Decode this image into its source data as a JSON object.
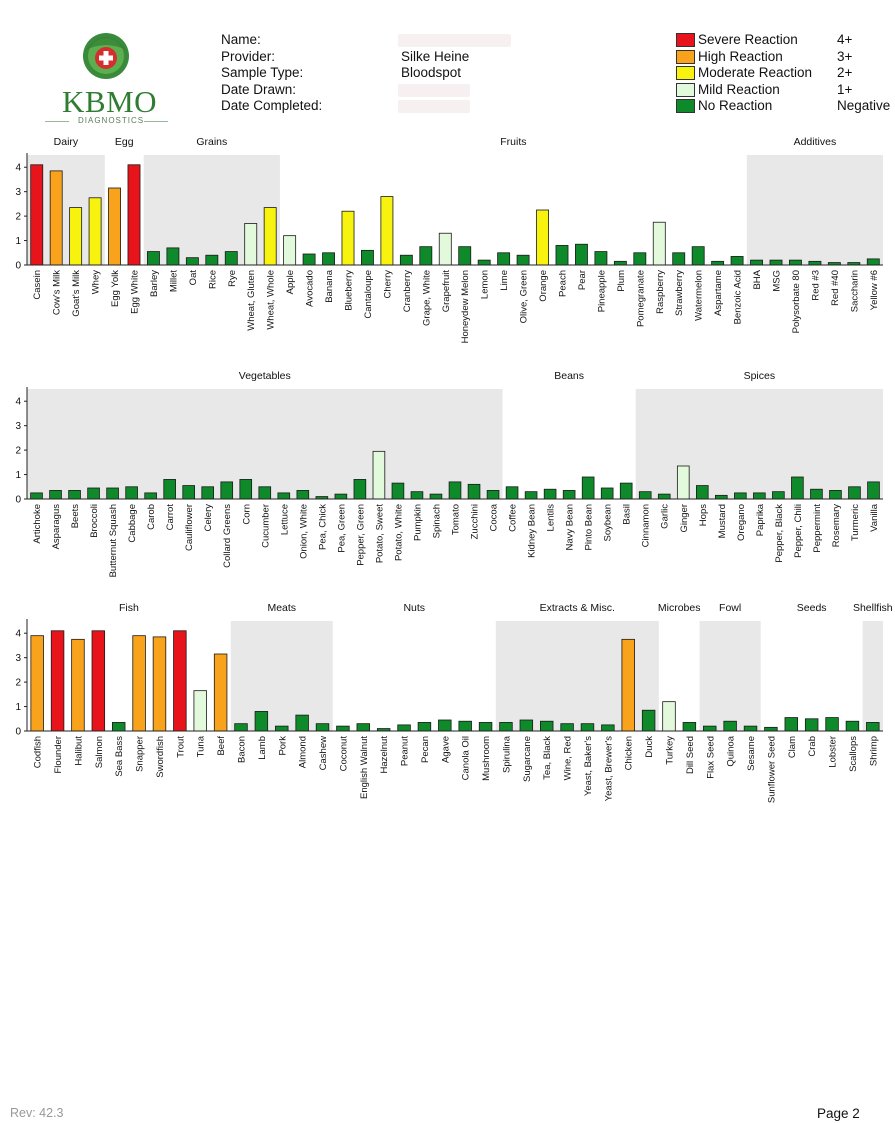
{
  "brand": {
    "logo_text": "KBMO",
    "logo_sub": "DIAGNOSTICS",
    "green": "#2f7d32",
    "red": "#e53935"
  },
  "patient": {
    "name_label": "Name:",
    "name_value": "",
    "provider_label": "Provider:",
    "provider_value": "Silke Heine",
    "sample_label": "Sample Type:",
    "sample_value": "Bloodspot",
    "drawn_label": "Date Drawn:",
    "drawn_value": "",
    "completed_label": "Date Completed:",
    "completed_value": ""
  },
  "legend": [
    {
      "label": "Severe Reaction",
      "grade": "4+",
      "color": "#e8141b"
    },
    {
      "label": "High Reaction",
      "grade": "3+",
      "color": "#f9a21b"
    },
    {
      "label": "Moderate Reaction",
      "grade": "2+",
      "color": "#f8f20f"
    },
    {
      "label": "Mild Reaction",
      "grade": "1+",
      "color": "#e2f9dc"
    },
    {
      "label": "No Reaction",
      "grade": "Negative",
      "color": "#0e8a2a"
    }
  ],
  "chart_data": [
    {
      "type": "bar",
      "ylim": [
        0,
        4.5
      ],
      "yticks": [
        "0",
        "1",
        "2",
        "3",
        "4"
      ],
      "groups": [
        {
          "name": "Dairy",
          "shaded": true,
          "start": 0,
          "end": 3
        },
        {
          "name": "Egg",
          "shaded": false,
          "start": 4,
          "end": 5
        },
        {
          "name": "Grains",
          "shaded": true,
          "start": 6,
          "end": 12
        },
        {
          "name": "Fruits",
          "shaded": false,
          "start": 13,
          "end": 36
        },
        {
          "name": "Additives",
          "shaded": true,
          "start": 37,
          "end": 46
        }
      ],
      "categories": [
        "Casein",
        "Cow's Milk",
        "Goat's Milk",
        "Whey",
        "Egg Yolk",
        "Egg White",
        "Barley",
        "Millet",
        "Oat",
        "Rice",
        "Rye",
        "Wheat, Gluten",
        "Wheat, Whole",
        "Apple",
        "Avocado",
        "Banana",
        "Blueberry",
        "Cantaloupe",
        "Cherry",
        "Cranberry",
        "Grape, White",
        "Grapefruit",
        "Honeydew Melon",
        "Lemon",
        "Lime",
        "Olive, Green",
        "Orange",
        "Peach",
        "Pear",
        "Pineapple",
        "Plum",
        "Pomegranate",
        "Raspberry",
        "Strawberry",
        "Watermelon",
        "Aspartame",
        "Benzoic Acid",
        "BHA",
        "MSG",
        "Polysorbate 80",
        "Red #3",
        "Red #40",
        "Saccharin",
        "Yellow #6"
      ],
      "values": [
        4.1,
        3.85,
        2.35,
        2.75,
        3.15,
        4.1,
        0.55,
        0.7,
        0.3,
        0.4,
        0.55,
        1.7,
        2.35,
        1.2,
        0.45,
        0.5,
        2.2,
        0.6,
        2.8,
        0.4,
        0.75,
        1.3,
        0.75,
        0.2,
        0.5,
        0.4,
        2.25,
        0.8,
        0.85,
        0.55,
        0.15,
        0.5,
        1.75,
        0.5,
        0.75,
        0.15,
        0.35,
        0.2,
        0.2,
        0.2,
        0.15,
        0.1,
        0.1,
        0.25
      ]
    },
    {
      "type": "bar",
      "ylim": [
        0,
        4.5
      ],
      "yticks": [
        "0",
        "1",
        "2",
        "3",
        "4"
      ],
      "groups": [
        {
          "name": "Vegetables",
          "shaded": true,
          "start": 0,
          "end": 24
        },
        {
          "name": "Beans",
          "shaded": false,
          "start": 25,
          "end": 31
        },
        {
          "name": "Spices",
          "shaded": true,
          "start": 32,
          "end": 46
        }
      ],
      "categories": [
        "Artichoke",
        "Asparagus",
        "Beets",
        "Broccoli",
        "Butternut Squash",
        "Cabbage",
        "Carob",
        "Carrot",
        "Cauliflower",
        "Celery",
        "Collard Greens",
        "Corn",
        "Cucumber",
        "Lettuce",
        "Onion, White",
        "Pea, Chick",
        "Pea, Green",
        "Pepper, Green",
        "Potato, Sweet",
        "Potato, White",
        "Pumpkin",
        "Spinach",
        "Tomato",
        "Zucchini",
        "Cocoa",
        "Coffee",
        "Kidney Bean",
        "Lentils",
        "Navy Bean",
        "Pinto Bean",
        "Soybean",
        "Basil",
        "Cinnamon",
        "Garlic",
        "Ginger",
        "Hops",
        "Mustard",
        "Oregano",
        "Paprika",
        "Pepper, Black",
        "Pepper, Chili",
        "Peppermint",
        "Rosemary",
        "Turmeric",
        "Vanilla"
      ],
      "values": [
        0.25,
        0.35,
        0.35,
        0.45,
        0.45,
        0.5,
        0.25,
        0.8,
        0.55,
        0.5,
        0.7,
        0.8,
        0.5,
        0.25,
        0.35,
        0.1,
        0.2,
        0.8,
        1.95,
        0.65,
        0.3,
        0.2,
        0.7,
        0.6,
        0.35,
        0.5,
        0.3,
        0.4,
        0.35,
        0.9,
        0.45,
        0.65,
        0.3,
        0.2,
        1.35,
        0.55,
        0.15,
        0.25,
        0.25,
        0.3,
        0.9,
        0.4,
        0.35,
        0.5,
        0.7
      ]
    },
    {
      "type": "bar",
      "ylim": [
        0,
        4.5
      ],
      "yticks": [
        "0",
        "1",
        "2",
        "3",
        "4"
      ],
      "groups": [
        {
          "name": "Fish",
          "shaded": false,
          "start": 0,
          "end": 9
        },
        {
          "name": "Meats",
          "shaded": true,
          "start": 10,
          "end": 14
        },
        {
          "name": "Nuts",
          "shaded": false,
          "start": 15,
          "end": 22
        },
        {
          "name": "Extracts & Misc.",
          "shaded": true,
          "start": 23,
          "end": 30
        },
        {
          "name": "Microbes",
          "shaded": false,
          "start": 31,
          "end": 32
        },
        {
          "name": "Fowl",
          "shaded": true,
          "start": 33,
          "end": 35
        },
        {
          "name": "Seeds",
          "shaded": false,
          "start": 36,
          "end": 40
        },
        {
          "name": "Shellfish",
          "shaded": true,
          "start": 41,
          "end": 46
        }
      ],
      "categories": [
        "Codfish",
        "Flounder",
        "Halibut",
        "Salmon",
        "Sea Bass",
        "Snapper",
        "Swordfish",
        "Trout",
        "Tuna",
        "Beef",
        "Bacon",
        "Lamb",
        "Pork",
        "Almond",
        "Cashew",
        "Coconut",
        "English Walnut",
        "Hazelnut",
        "Peanut",
        "Pecan",
        "Agave",
        "Canola Oil",
        "Mushroom",
        "Spirulina",
        "Sugarcane",
        "Tea, Black",
        "Wine, Red",
        "Yeast, Baker's",
        "Yeast, Brewer's",
        "Chicken",
        "Duck",
        "Turkey",
        "Dill Seed",
        "Flax Seed",
        "Quinoa",
        "Sesame",
        "Sunflower Seed",
        "Clam",
        "Crab",
        "Lobster",
        "Scallops",
        "Shrimp"
      ],
      "values": [
        3.9,
        4.1,
        3.75,
        4.1,
        0.35,
        3.9,
        3.85,
        4.1,
        1.65,
        3.15,
        0.3,
        0.8,
        0.2,
        0.65,
        0.3,
        0.2,
        0.3,
        0.1,
        0.25,
        0.35,
        0.45,
        0.4,
        0.35,
        0.35,
        0.45,
        0.4,
        0.3,
        0.3,
        0.25,
        3.75,
        0.85,
        1.2,
        0.35,
        0.2,
        0.4,
        0.2,
        0.15,
        0.55,
        0.5,
        0.55,
        0.4,
        0.35
      ]
    }
  ],
  "footer": {
    "rev": "Rev: 42.3",
    "page": "Page 2"
  }
}
